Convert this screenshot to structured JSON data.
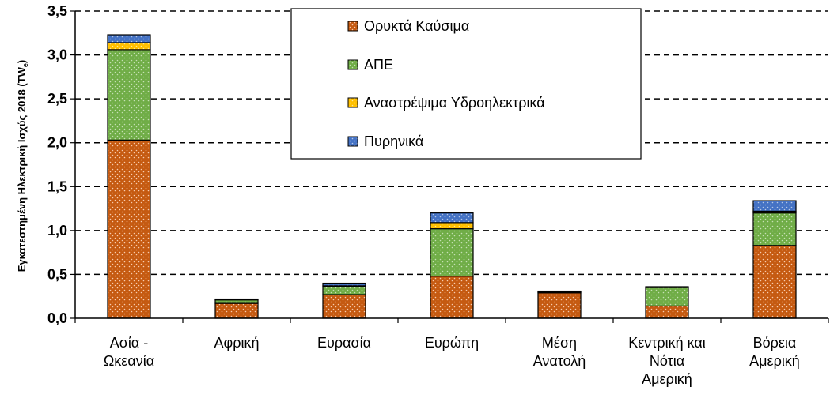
{
  "chart_data": {
    "type": "bar",
    "stacked": true,
    "categories": [
      [
        "Ασία -",
        "Ωκεανία"
      ],
      [
        "Αφρική"
      ],
      [
        "Ευρασία"
      ],
      [
        "Ευρώπη"
      ],
      [
        "Μέση",
        "Ανατολή"
      ],
      [
        "Κεντρική και",
        "Νότια",
        "Αμερική"
      ],
      [
        "Βόρεια",
        "Αμερική"
      ]
    ],
    "series": [
      {
        "name": "Ορυκτά Καύσιμα",
        "color": "#C55A11",
        "values": [
          2.03,
          0.17,
          0.27,
          0.48,
          0.29,
          0.14,
          0.83
        ]
      },
      {
        "name": "ΑΠΕ",
        "color": "#70AD47",
        "values": [
          1.03,
          0.04,
          0.09,
          0.54,
          0.01,
          0.21,
          0.37
        ]
      },
      {
        "name": "Αναστρέψιμα Υδροηλεκτρικά",
        "color": "#FFC000",
        "values": [
          0.08,
          0.0,
          0.01,
          0.07,
          0.0,
          0.0,
          0.02
        ]
      },
      {
        "name": "Πυρηνικά",
        "color": "#4472C4",
        "values": [
          0.09,
          0.01,
          0.03,
          0.11,
          0.01,
          0.01,
          0.12
        ]
      }
    ],
    "ylabel": "Εγκατεστημένη Ηλεκτρική Ισχύς 2018",
    "ylabel_unit": "(TW",
    "ylabel_unit_sub": "e",
    "ylabel_unit_close": ")",
    "ylim": [
      0,
      3.5
    ],
    "yticks": [
      "0,0",
      "0,5",
      "1,0",
      "1,5",
      "2,0",
      "2,5",
      "3,0",
      "3,5"
    ],
    "grid": true,
    "grid_style": "dashed",
    "legend_position": "top-center"
  }
}
